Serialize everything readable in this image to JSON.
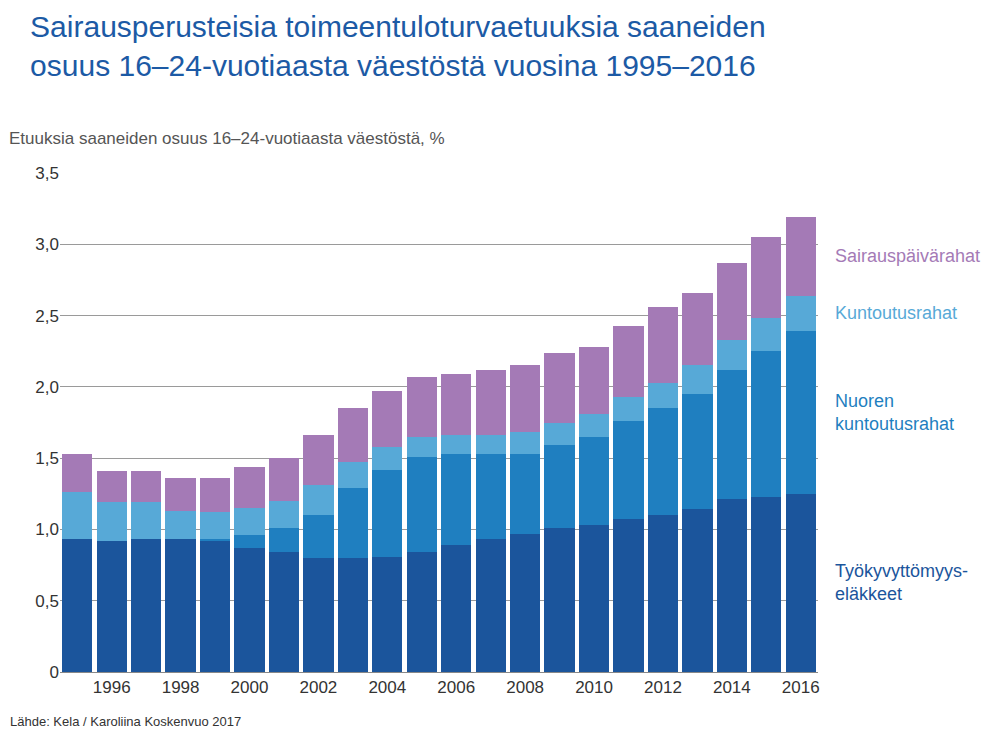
{
  "chart_data": {
    "type": "bar",
    "title": "Sairausperusteisia toimeentuloturvaetuuksia saaneiden\nosuus 16–24-vuotiaasta väestöstä vuosina 1995–2016",
    "subtitle": "Etuuksia saaneiden osuus 16–24-vuotiaasta väestöstä, %",
    "source": "Lähde: Kela / Karoliina Koskenvuo 2017",
    "stacked": true,
    "grid": true,
    "x": [
      1995,
      1996,
      1997,
      1998,
      1999,
      2000,
      2001,
      2002,
      2003,
      2004,
      2005,
      2006,
      2007,
      2008,
      2009,
      2010,
      2011,
      2012,
      2013,
      2014,
      2015,
      2016
    ],
    "xlim": [
      1994.5,
      2016.5
    ],
    "xticks": [
      1996,
      1998,
      2000,
      2002,
      2004,
      2006,
      2008,
      2010,
      2012,
      2014,
      2016
    ],
    "ylim": [
      0,
      3.5
    ],
    "yticks": [
      0,
      {
        "value": 0.5,
        "label": "0,5"
      },
      {
        "value": 1.0,
        "label": "1,0"
      },
      {
        "value": 1.5,
        "label": "1,5"
      },
      {
        "value": 2.0,
        "label": "2,0"
      },
      {
        "value": 2.5,
        "label": "2,5"
      },
      {
        "value": 3.0,
        "label": "3,0"
      },
      {
        "value": 3.5,
        "label": "3,5"
      }
    ],
    "series": [
      {
        "name": "Työkyvyttömyys-\neläkkeet",
        "color": "#1b559c",
        "values": [
          0.93,
          0.92,
          0.93,
          0.93,
          0.92,
          0.87,
          0.84,
          0.8,
          0.8,
          0.81,
          0.84,
          0.89,
          0.93,
          0.97,
          1.01,
          1.03,
          1.07,
          1.1,
          1.14,
          1.21,
          1.23,
          1.25
        ]
      },
      {
        "name": "Nuoren\nkuntoutusrahat",
        "color": "#1f7fc0",
        "values": [
          0,
          0,
          0,
          0,
          0.01,
          0.09,
          0.17,
          0.3,
          0.49,
          0.61,
          0.67,
          0.64,
          0.6,
          0.56,
          0.58,
          0.62,
          0.69,
          0.75,
          0.81,
          0.91,
          1.02,
          1.14
        ]
      },
      {
        "name": "Kuntoutusrahat",
        "color": "#57a9d7",
        "values": [
          0.33,
          0.27,
          0.26,
          0.2,
          0.19,
          0.19,
          0.19,
          0.21,
          0.18,
          0.16,
          0.14,
          0.13,
          0.13,
          0.15,
          0.16,
          0.16,
          0.17,
          0.18,
          0.2,
          0.21,
          0.23,
          0.25
        ]
      },
      {
        "name": "Sairauspäivärahat",
        "color": "#a47ab6",
        "values": [
          0.27,
          0.22,
          0.22,
          0.23,
          0.24,
          0.29,
          0.3,
          0.35,
          0.38,
          0.39,
          0.42,
          0.43,
          0.46,
          0.47,
          0.49,
          0.47,
          0.5,
          0.53,
          0.51,
          0.54,
          0.57,
          0.55
        ]
      }
    ]
  }
}
